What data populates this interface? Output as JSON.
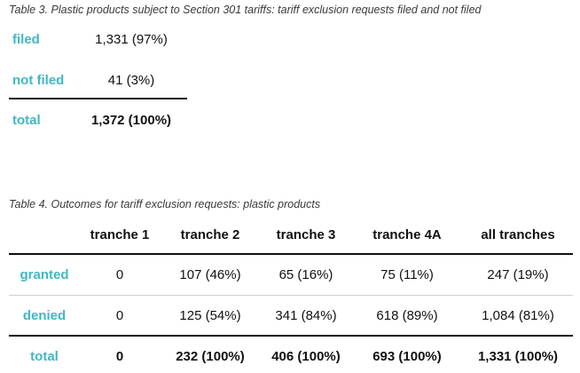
{
  "table3": {
    "caption": "Table 3. Plastic products subject to Section 301 tariffs: tariff exclusion requests filed and not filed",
    "rows": [
      {
        "label": "filed",
        "value": "1,331 (97%)"
      },
      {
        "label": "not filed",
        "value": "41 (3%)"
      },
      {
        "label": "total",
        "value": "1,372 (100%)"
      }
    ]
  },
  "table4": {
    "caption": "Table 4. Outcomes for tariff exclusion requests: plastic products",
    "headers": [
      "tranche 1",
      "tranche 2",
      "tranche 3",
      "tranche 4A",
      "all tranches"
    ],
    "rows": [
      {
        "label": "granted",
        "values": [
          "0",
          "107 (46%)",
          "65 (16%)",
          "75 (11%)",
          "247 (19%)"
        ]
      },
      {
        "label": "denied",
        "values": [
          "0",
          "125 (54%)",
          "341 (84%)",
          "618 (89%)",
          "1,084 (81%)"
        ]
      },
      {
        "label": "total",
        "values": [
          "0",
          "232 (100%)",
          "406 (100%)",
          "693 (100%)",
          "1,331 (100%)"
        ]
      }
    ]
  },
  "colors": {
    "accent": "#3fb7c5",
    "rule": "#111111",
    "divider": "#cfcfcf"
  }
}
